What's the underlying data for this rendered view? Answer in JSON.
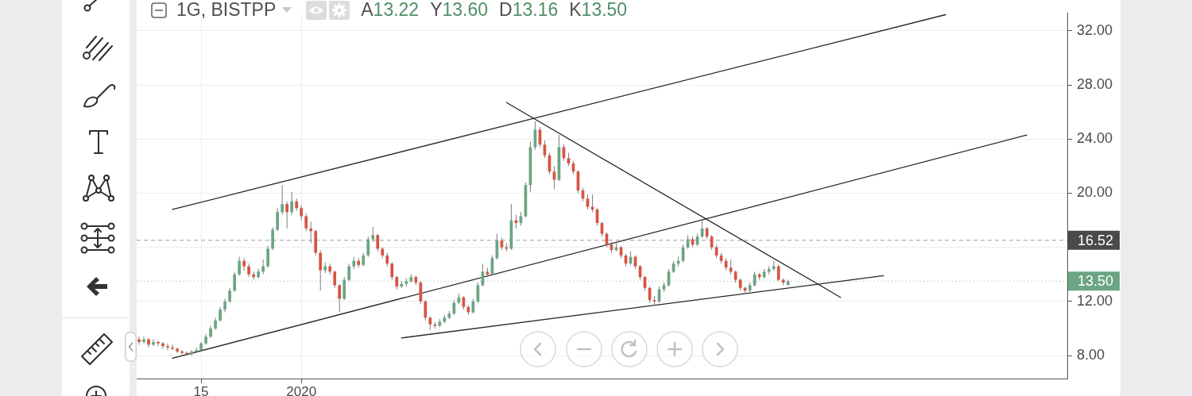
{
  "chart_data": {
    "type": "candlestick",
    "title": "1G, BISTPP",
    "annotations": [
      "A13.22",
      "Y13.60",
      "D13.16",
      "K13.50"
    ],
    "categories": [
      null,
      null,
      null,
      null,
      null,
      null,
      null,
      null,
      null,
      null,
      null,
      null,
      null,
      "15",
      null,
      null,
      null,
      null,
      null,
      null,
      null,
      null,
      null,
      null,
      null,
      null,
      null,
      null,
      null,
      null,
      null,
      null,
      null,
      null,
      "2020",
      null,
      null,
      null,
      null,
      null,
      null,
      null,
      null,
      null,
      null,
      null,
      null,
      null,
      null,
      null,
      null,
      null,
      null,
      null,
      null,
      null,
      null,
      null,
      null,
      null,
      null,
      null,
      null,
      null,
      null,
      null,
      null,
      null,
      null,
      null,
      null,
      null,
      null,
      null,
      null,
      null,
      null,
      null,
      null,
      null,
      null,
      null,
      null,
      null,
      null,
      null,
      null,
      null,
      null,
      null,
      null,
      null,
      null,
      null,
      null,
      null,
      null,
      null,
      null,
      null,
      null,
      null,
      null,
      null,
      null,
      null,
      null,
      null,
      null,
      null,
      null,
      null,
      null,
      null,
      null,
      null,
      null,
      null,
      null,
      null,
      null,
      null,
      null,
      null,
      null,
      null,
      null,
      null,
      null,
      null,
      null,
      null,
      null,
      null,
      null,
      null,
      null,
      null,
      null,
      null,
      null,
      null,
      null,
      null,
      null,
      null,
      null,
      null,
      null,
      null,
      null,
      null,
      null,
      null,
      null,
      null,
      null,
      null,
      null,
      null,
      null,
      null,
      null,
      null,
      null,
      null,
      null,
      null,
      null,
      null,
      null,
      null,
      null,
      null,
      null,
      null,
      null,
      null,
      null,
      null,
      null,
      null,
      null,
      null,
      null,
      null,
      null,
      null,
      null,
      null,
      null,
      null,
      null,
      null,
      null
    ],
    "ohlc": [
      [
        9.2,
        9.4,
        8.8,
        9.0
      ],
      [
        9.0,
        9.4,
        8.9,
        9.2
      ],
      [
        9.2,
        9.3,
        8.6,
        8.8
      ],
      [
        8.8,
        9.2,
        8.7,
        9.0
      ],
      [
        9.0,
        9.1,
        8.7,
        8.9
      ],
      [
        8.9,
        9.0,
        8.5,
        8.7
      ],
      [
        8.7,
        8.9,
        8.4,
        8.6
      ],
      [
        8.6,
        8.8,
        8.4,
        8.5
      ],
      [
        8.5,
        8.6,
        8.2,
        8.3
      ],
      [
        8.3,
        8.4,
        8.1,
        8.2
      ],
      [
        8.2,
        8.3,
        8.0,
        8.1
      ],
      [
        8.1,
        8.4,
        8.0,
        8.3
      ],
      [
        8.3,
        8.6,
        8.2,
        8.4
      ],
      [
        8.4,
        9.0,
        8.3,
        8.9
      ],
      [
        8.9,
        9.6,
        8.8,
        9.4
      ],
      [
        9.4,
        10.2,
        9.3,
        10.0
      ],
      [
        10.0,
        10.8,
        9.9,
        10.6
      ],
      [
        10.6,
        11.6,
        10.5,
        11.4
      ],
      [
        11.4,
        12.2,
        11.2,
        12.0
      ],
      [
        12.0,
        13.0,
        11.9,
        12.8
      ],
      [
        12.8,
        14.2,
        12.7,
        14.0
      ],
      [
        14.0,
        15.3,
        13.9,
        15.0
      ],
      [
        15.0,
        15.2,
        14.3,
        14.6
      ],
      [
        14.6,
        14.8,
        13.8,
        14.0
      ],
      [
        14.0,
        14.2,
        13.6,
        13.8
      ],
      [
        13.8,
        14.4,
        13.7,
        14.2
      ],
      [
        14.2,
        15.1,
        14.0,
        14.6
      ],
      [
        14.6,
        16.1,
        14.5,
        15.9
      ],
      [
        15.9,
        17.5,
        15.8,
        17.3
      ],
      [
        17.3,
        18.9,
        17.2,
        18.6
      ],
      [
        18.6,
        20.6,
        18.4,
        19.2
      ],
      [
        19.2,
        19.4,
        17.4,
        18.6
      ],
      [
        18.6,
        20.1,
        18.4,
        19.4
      ],
      [
        19.4,
        19.6,
        18.7,
        18.9
      ],
      [
        18.9,
        19.1,
        18.0,
        18.3
      ],
      [
        18.3,
        18.5,
        17.2,
        17.4
      ],
      [
        17.4,
        17.9,
        16.3,
        17.2
      ],
      [
        17.2,
        17.3,
        15.4,
        15.6
      ],
      [
        15.6,
        15.8,
        12.8,
        14.3
      ],
      [
        14.3,
        14.9,
        14.1,
        14.6
      ],
      [
        14.6,
        14.8,
        14.0,
        14.2
      ],
      [
        14.2,
        14.3,
        13.0,
        13.2
      ],
      [
        13.2,
        13.3,
        11.2,
        12.2
      ],
      [
        12.2,
        13.8,
        12.1,
        13.6
      ],
      [
        13.6,
        14.8,
        13.5,
        14.6
      ],
      [
        14.6,
        15.3,
        14.4,
        15.0
      ],
      [
        15.0,
        15.2,
        14.5,
        14.7
      ],
      [
        14.7,
        15.6,
        14.6,
        15.4
      ],
      [
        15.4,
        16.8,
        15.3,
        16.6
      ],
      [
        16.6,
        17.5,
        16.4,
        16.9
      ],
      [
        16.9,
        17.0,
        15.7,
        15.9
      ],
      [
        15.9,
        16.0,
        15.2,
        15.4
      ],
      [
        15.4,
        15.6,
        14.6,
        14.8
      ],
      [
        14.8,
        14.9,
        13.6,
        13.8
      ],
      [
        13.8,
        13.9,
        12.9,
        13.1
      ],
      [
        13.1,
        13.5,
        13.0,
        13.3
      ],
      [
        13.3,
        13.7,
        13.1,
        13.5
      ],
      [
        13.5,
        14.0,
        13.4,
        13.8
      ],
      [
        13.8,
        13.9,
        13.2,
        13.4
      ],
      [
        13.4,
        13.5,
        11.8,
        12.0
      ],
      [
        12.0,
        12.1,
        10.6,
        10.8
      ],
      [
        10.8,
        10.9,
        9.9,
        10.3
      ],
      [
        10.3,
        10.5,
        10.0,
        10.2
      ],
      [
        10.2,
        10.7,
        10.1,
        10.5
      ],
      [
        10.5,
        11.0,
        10.4,
        10.8
      ],
      [
        10.8,
        11.3,
        10.7,
        11.1
      ],
      [
        11.1,
        12.1,
        11.0,
        11.9
      ],
      [
        11.9,
        12.6,
        11.8,
        12.3
      ],
      [
        12.3,
        12.4,
        11.4,
        11.6
      ],
      [
        11.6,
        11.7,
        11.0,
        11.2
      ],
      [
        11.2,
        12.2,
        11.1,
        12.0
      ],
      [
        12.0,
        13.4,
        11.9,
        13.2
      ],
      [
        13.2,
        14.8,
        13.1,
        14.2
      ],
      [
        14.2,
        14.5,
        13.8,
        14.0
      ],
      [
        14.0,
        15.4,
        13.9,
        15.2
      ],
      [
        15.2,
        17.0,
        15.1,
        16.5
      ],
      [
        16.5,
        16.7,
        15.8,
        16.0
      ],
      [
        16.0,
        16.3,
        15.7,
        15.9
      ],
      [
        15.9,
        19.2,
        15.8,
        18.0
      ],
      [
        18.0,
        18.4,
        17.4,
        17.8
      ],
      [
        17.8,
        18.6,
        17.6,
        18.3
      ],
      [
        18.3,
        20.8,
        18.2,
        20.6
      ],
      [
        20.6,
        23.8,
        20.1,
        23.4
      ],
      [
        23.4,
        25.3,
        23.2,
        24.7
      ],
      [
        24.7,
        24.9,
        23.4,
        23.6
      ],
      [
        23.6,
        23.9,
        22.6,
        22.8
      ],
      [
        22.8,
        23.0,
        21.4,
        21.6
      ],
      [
        21.6,
        22.0,
        20.3,
        21.0
      ],
      [
        21.0,
        24.3,
        20.9,
        23.4
      ],
      [
        23.4,
        23.6,
        22.4,
        22.6
      ],
      [
        22.6,
        23.0,
        22.0,
        22.2
      ],
      [
        22.2,
        22.4,
        21.4,
        21.6
      ],
      [
        21.6,
        21.7,
        20.0,
        20.2
      ],
      [
        20.2,
        20.4,
        19.4,
        19.6
      ],
      [
        19.6,
        19.9,
        18.8,
        19.0
      ],
      [
        19.0,
        19.9,
        18.6,
        18.8
      ],
      [
        18.8,
        18.9,
        17.6,
        17.8
      ],
      [
        17.8,
        17.9,
        16.8,
        17.0
      ],
      [
        17.0,
        17.1,
        16.0,
        16.2
      ],
      [
        16.2,
        16.4,
        15.6,
        15.8
      ],
      [
        15.8,
        16.3,
        15.7,
        16.0
      ],
      [
        16.0,
        16.1,
        15.2,
        15.4
      ],
      [
        15.4,
        15.5,
        14.6,
        14.8
      ],
      [
        14.8,
        15.7,
        14.7,
        15.3
      ],
      [
        15.3,
        15.4,
        14.4,
        14.6
      ],
      [
        14.6,
        14.7,
        13.6,
        13.8
      ],
      [
        13.8,
        13.9,
        12.8,
        13.0
      ],
      [
        13.0,
        13.1,
        11.9,
        12.1
      ],
      [
        12.1,
        12.4,
        11.7,
        12.0
      ],
      [
        12.0,
        13.1,
        11.9,
        12.9
      ],
      [
        12.9,
        13.4,
        12.7,
        13.2
      ],
      [
        13.2,
        14.4,
        13.1,
        14.2
      ],
      [
        14.2,
        15.0,
        14.1,
        14.8
      ],
      [
        14.8,
        15.3,
        14.6,
        15.0
      ],
      [
        15.0,
        16.2,
        14.9,
        16.0
      ],
      [
        16.0,
        16.9,
        15.9,
        16.6
      ],
      [
        16.6,
        16.8,
        16.0,
        16.2
      ],
      [
        16.2,
        17.0,
        16.1,
        16.8
      ],
      [
        16.8,
        18.0,
        16.7,
        17.4
      ],
      [
        17.4,
        17.5,
        16.6,
        16.8
      ],
      [
        16.8,
        16.9,
        15.8,
        16.0
      ],
      [
        16.0,
        16.2,
        15.2,
        15.4
      ],
      [
        15.4,
        15.6,
        14.8,
        15.0
      ],
      [
        15.0,
        15.2,
        14.3,
        14.5
      ],
      [
        14.5,
        15.1,
        14.0,
        14.2
      ],
      [
        14.2,
        14.3,
        13.4,
        13.6
      ],
      [
        13.6,
        13.7,
        12.8,
        13.0
      ],
      [
        13.0,
        13.1,
        12.6,
        12.8
      ],
      [
        12.8,
        13.4,
        12.7,
        13.2
      ],
      [
        13.2,
        14.2,
        13.1,
        14.0
      ],
      [
        14.0,
        14.1,
        13.6,
        13.8
      ],
      [
        13.8,
        14.4,
        13.7,
        14.2
      ],
      [
        14.2,
        14.6,
        14.0,
        14.4
      ],
      [
        14.4,
        15.0,
        14.3,
        14.6
      ],
      [
        14.6,
        14.7,
        13.5,
        13.6
      ],
      [
        13.6,
        13.7,
        13.2,
        13.4
      ],
      [
        13.22,
        13.6,
        13.16,
        13.5
      ],
      null,
      null,
      null,
      null,
      null,
      null,
      null,
      null,
      null,
      null,
      null,
      null,
      null,
      null,
      null,
      null,
      null,
      null,
      null,
      null,
      null,
      null,
      null,
      null,
      null,
      null,
      null,
      null,
      null,
      null,
      null,
      null,
      null,
      null,
      null,
      null,
      null,
      null,
      null,
      null,
      null,
      null,
      null,
      null,
      null,
      null,
      null,
      null,
      null,
      null,
      null,
      null,
      null,
      null,
      null,
      null,
      null,
      null
    ],
    "series": [
      {
        "type": "line",
        "color": "#262626",
        "values": [
          null,
          null,
          null,
          null,
          null,
          null,
          null,
          18.8,
          null,
          null,
          null,
          null,
          null,
          null,
          null,
          null,
          null,
          null,
          null,
          null,
          null,
          null,
          null,
          null,
          null,
          null,
          null,
          null,
          null,
          null,
          null,
          null,
          null,
          null,
          null,
          null,
          null,
          null,
          null,
          null,
          null,
          null,
          null,
          null,
          null,
          null,
          null,
          null,
          null,
          null,
          null,
          null,
          null,
          null,
          null,
          null,
          null,
          null,
          null,
          null,
          null,
          null,
          null,
          null,
          null,
          null,
          null,
          null,
          null,
          null,
          null,
          null,
          null,
          null,
          null,
          null,
          null,
          null,
          null,
          null,
          null,
          null,
          null,
          null,
          null,
          null,
          null,
          null,
          null,
          null,
          null,
          null,
          null,
          null,
          null,
          null,
          null,
          null,
          null,
          null,
          null,
          null,
          null,
          null,
          null,
          null,
          null,
          null,
          null,
          null,
          null,
          null,
          null,
          null,
          null,
          null,
          null,
          null,
          null,
          null,
          null,
          null,
          null,
          null,
          null,
          null,
          null,
          null,
          null,
          null,
          null,
          null,
          null,
          null,
          null,
          null,
          null,
          null,
          null,
          null,
          null,
          null,
          null,
          null,
          null,
          null,
          null,
          null,
          null,
          null,
          null,
          null,
          null,
          null,
          null,
          null,
          null,
          null,
          null,
          null,
          null,
          null,
          null,
          null,
          null,
          null,
          null,
          null,
          null,
          33.2,
          null,
          null,
          null,
          null,
          null,
          null,
          null,
          null,
          null,
          null,
          null,
          null,
          null,
          null,
          null,
          null,
          null,
          null,
          null,
          null,
          null,
          null,
          null,
          null,
          null
        ]
      },
      {
        "type": "line",
        "color": "#262626",
        "values": [
          null,
          null,
          null,
          null,
          null,
          null,
          null,
          7.8,
          null,
          null,
          null,
          null,
          null,
          null,
          null,
          null,
          null,
          null,
          null,
          null,
          null,
          null,
          null,
          null,
          null,
          null,
          null,
          null,
          null,
          null,
          null,
          null,
          null,
          null,
          null,
          null,
          null,
          null,
          null,
          null,
          null,
          null,
          null,
          null,
          null,
          null,
          null,
          null,
          null,
          null,
          null,
          null,
          null,
          null,
          null,
          null,
          null,
          null,
          null,
          null,
          null,
          null,
          null,
          null,
          null,
          null,
          null,
          null,
          null,
          null,
          null,
          null,
          null,
          null,
          null,
          null,
          null,
          null,
          null,
          null,
          null,
          null,
          null,
          null,
          null,
          null,
          null,
          null,
          null,
          null,
          null,
          null,
          null,
          null,
          null,
          null,
          null,
          null,
          null,
          null,
          null,
          null,
          null,
          null,
          null,
          null,
          null,
          null,
          null,
          null,
          null,
          null,
          null,
          null,
          null,
          null,
          null,
          null,
          null,
          null,
          null,
          null,
          null,
          null,
          null,
          null,
          null,
          null,
          null,
          null,
          null,
          null,
          null,
          null,
          null,
          null,
          null,
          null,
          null,
          null,
          null,
          null,
          null,
          null,
          null,
          null,
          null,
          null,
          null,
          null,
          null,
          null,
          null,
          null,
          null,
          null,
          null,
          null,
          null,
          null,
          null,
          null,
          null,
          null,
          null,
          null,
          null,
          null,
          null,
          null,
          null,
          null,
          null,
          null,
          null,
          null,
          null,
          null,
          null,
          null,
          null,
          null,
          null,
          null,
          null,
          null,
          24.3,
          null,
          null,
          null,
          null,
          null,
          null,
          null,
          null
        ]
      },
      {
        "type": "line",
        "color": "#262626",
        "values": [
          null,
          null,
          null,
          null,
          null,
          null,
          null,
          null,
          null,
          null,
          null,
          null,
          null,
          null,
          null,
          null,
          null,
          null,
          null,
          null,
          null,
          null,
          null,
          null,
          null,
          null,
          null,
          null,
          null,
          null,
          null,
          null,
          null,
          null,
          null,
          null,
          null,
          null,
          null,
          null,
          null,
          null,
          null,
          null,
          null,
          null,
          null,
          null,
          null,
          null,
          null,
          null,
          null,
          null,
          null,
          null,
          null,
          null,
          null,
          null,
          null,
          null,
          null,
          null,
          null,
          null,
          null,
          null,
          null,
          null,
          null,
          null,
          null,
          null,
          null,
          null,
          null,
          26.7,
          null,
          null,
          null,
          null,
          null,
          null,
          null,
          null,
          null,
          null,
          null,
          null,
          null,
          null,
          null,
          null,
          null,
          null,
          null,
          null,
          null,
          null,
          null,
          null,
          null,
          null,
          null,
          null,
          null,
          null,
          null,
          null,
          null,
          null,
          null,
          null,
          null,
          null,
          null,
          null,
          null,
          null,
          null,
          null,
          null,
          null,
          null,
          null,
          null,
          null,
          null,
          null,
          null,
          null,
          null,
          null,
          null,
          null,
          null,
          null,
          null,
          null,
          null,
          null,
          null,
          null,
          null,
          null,
          null,
          12.3,
          null,
          null,
          null,
          null,
          null,
          null,
          null,
          null,
          null,
          null,
          null,
          null,
          null,
          null,
          null,
          null,
          null,
          null,
          null,
          null,
          null,
          null,
          null,
          null,
          null,
          null,
          null,
          null,
          null,
          null,
          null,
          null,
          null,
          null,
          null,
          null,
          null,
          null,
          null,
          null,
          null,
          null,
          null,
          null,
          null,
          null,
          null
        ]
      },
      {
        "type": "line",
        "color": "#262626",
        "values": [
          null,
          null,
          null,
          null,
          null,
          null,
          null,
          null,
          null,
          null,
          null,
          null,
          null,
          null,
          null,
          null,
          null,
          null,
          null,
          null,
          null,
          null,
          null,
          null,
          null,
          null,
          null,
          null,
          null,
          null,
          null,
          null,
          null,
          null,
          null,
          null,
          null,
          null,
          null,
          null,
          null,
          null,
          null,
          null,
          null,
          null,
          null,
          null,
          null,
          null,
          null,
          null,
          null,
          null,
          null,
          9.3,
          null,
          null,
          null,
          null,
          null,
          null,
          null,
          null,
          null,
          null,
          null,
          null,
          null,
          null,
          null,
          null,
          null,
          null,
          null,
          null,
          null,
          null,
          null,
          null,
          null,
          null,
          null,
          null,
          null,
          null,
          null,
          null,
          null,
          null,
          null,
          null,
          null,
          null,
          null,
          null,
          null,
          null,
          null,
          null,
          null,
          null,
          null,
          null,
          null,
          null,
          null,
          null,
          null,
          null,
          null,
          null,
          null,
          null,
          null,
          null,
          null,
          null,
          null,
          null,
          null,
          null,
          null,
          null,
          null,
          null,
          null,
          null,
          null,
          null,
          null,
          null,
          null,
          null,
          null,
          null,
          null,
          null,
          null,
          null,
          null,
          null,
          null,
          null,
          null,
          null,
          null,
          null,
          null,
          null,
          null,
          null,
          null,
          null,
          null,
          null,
          13.9,
          null,
          null,
          null,
          null,
          null,
          null,
          null,
          null,
          null,
          null,
          null,
          null,
          null,
          null,
          null,
          null,
          null,
          null,
          null,
          null,
          null,
          null,
          null,
          null,
          null,
          null,
          null,
          null,
          null,
          null,
          null,
          null,
          null,
          null,
          null,
          null,
          null,
          null
        ]
      }
    ],
    "ylim": [
      6.3,
      33.3
    ],
    "yticks": [
      {
        "value": 8,
        "label": "8.00"
      },
      {
        "value": 12,
        "label": "12.00"
      },
      {
        "value": 16,
        "label": null
      },
      {
        "value": 20,
        "label": "20.00"
      },
      {
        "value": 24,
        "label": "24.00"
      },
      {
        "value": 28,
        "label": "28.00"
      },
      {
        "value": 32,
        "label": "32.00"
      }
    ],
    "grid": true,
    "ref_lines": [
      {
        "axis": "y",
        "value": 16.52,
        "label": "16.52",
        "color": "#4a4a4a",
        "line_style": "dashed"
      },
      {
        "axis": "y",
        "value": 13.5,
        "label": "13.50",
        "color": "#6ba583",
        "line_style": "dotted"
      }
    ]
  }
}
